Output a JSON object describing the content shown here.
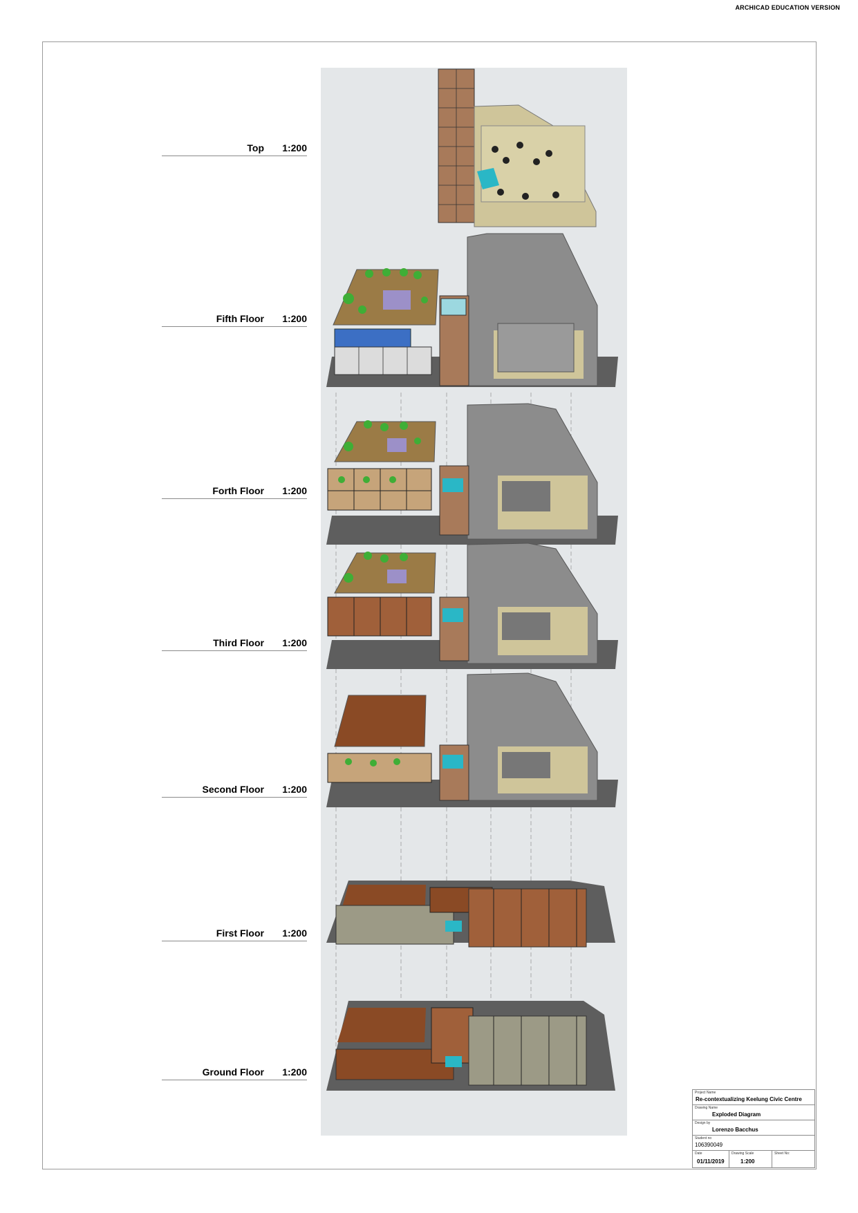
{
  "watermark": "ARCHICAD EDUCATION VERSION",
  "levels": [
    {
      "name": "Top",
      "scale": "1:200"
    },
    {
      "name": "Fifth Floor",
      "scale": "1:200"
    },
    {
      "name": "Forth Floor",
      "scale": "1:200"
    },
    {
      "name": "Third Floor",
      "scale": "1:200"
    },
    {
      "name": "Second Floor",
      "scale": "1:200"
    },
    {
      "name": "First Floor",
      "scale": "1:200"
    },
    {
      "name": "Ground Floor",
      "scale": "1:200"
    }
  ],
  "title_block": {
    "project_caption": "Project Name",
    "project_name": "Re-contextualizing Keelung Civic Centre",
    "drawing_caption": "Drawing Name",
    "drawing_name": "Exploded Diagram",
    "design_caption": "Design by",
    "designer": "Lorenzo Bacchus",
    "student_caption": "Student no",
    "student_no": "106390049",
    "date_caption": "Date",
    "date": "01/11/2019",
    "scale_caption": "Drawing Scale",
    "scale": "1:200",
    "sheet_caption": "Sheet No:"
  },
  "colors": {
    "background": "#e4e7e9",
    "slab": "#5e5e5e",
    "roof_grey": "#8c8c8c",
    "tan": "#cfc59a",
    "brown": "#8a4a25",
    "planting": "#3fae36",
    "glass_blue": "#3c6fc4",
    "water": "#2ab7c6"
  }
}
